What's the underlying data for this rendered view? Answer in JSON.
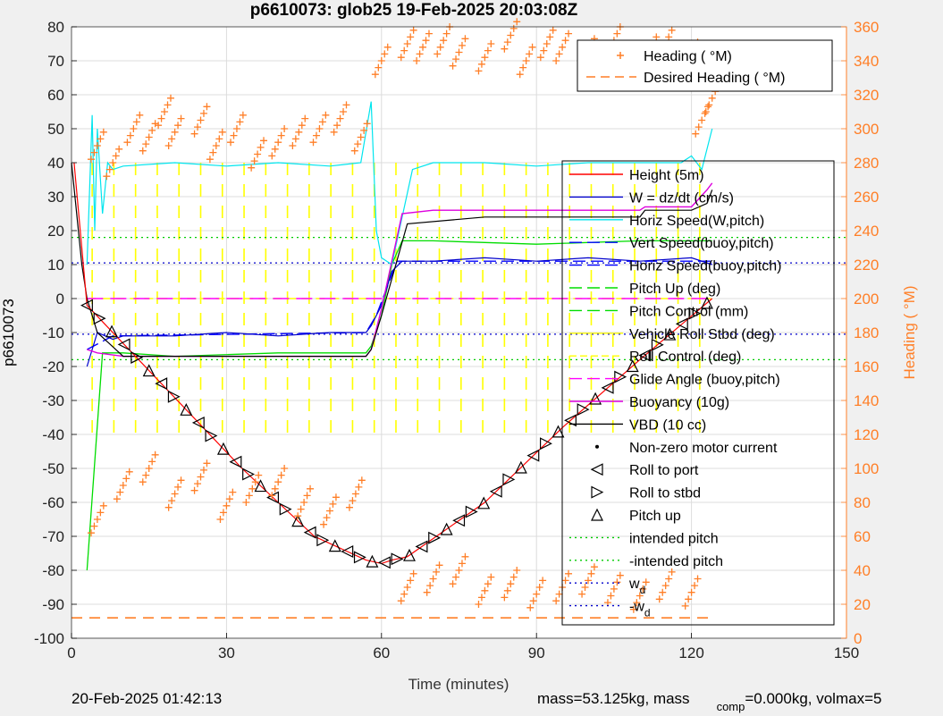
{
  "chart_data": {
    "type": "line",
    "title": "p6610073: glob25 19-Feb-2025 20:03:08Z",
    "xlabel": "Time (minutes)",
    "ylabel": "p6610073",
    "y2label": "Heading ( °M)",
    "xlim": [
      0,
      150
    ],
    "ylim": [
      -100,
      80
    ],
    "y2lim": [
      0,
      360
    ],
    "xticks": [
      "0",
      "30",
      "60",
      "90",
      "120",
      "150"
    ],
    "yticks": [
      "80",
      "70",
      "60",
      "50",
      "40",
      "30",
      "20",
      "10",
      "0",
      "-10",
      "-20",
      "-30",
      "-40",
      "-50",
      "-60",
      "-70",
      "-80",
      "-90",
      "-100"
    ],
    "y2ticks": [
      "360",
      "340",
      "320",
      "300",
      "280",
      "260",
      "240",
      "220",
      "200",
      "180",
      "160",
      "140",
      "120",
      "100",
      "80",
      "60",
      "40",
      "20",
      "0"
    ],
    "grid": true,
    "legend_heading": [
      "Heading ( °M)",
      "Desired Heading ( °M)"
    ],
    "legend_main": [
      "Height (5m)",
      "W = dz/dt (cm/s)",
      "Horiz Speed(W,pitch)",
      "Vert Speed(buoy,pitch)",
      "Horiz Speed(buoy,pitch)",
      "Pitch Up (deg)",
      "Pitch Control (mm)",
      "Vehicle Roll Stbd (deg)",
      "Roll Control (deg)",
      "Glide Angle (buoy,pitch)",
      "Buoyancy (10g)",
      "VBD (10 cc)",
      "Non-zero motor current",
      "Roll to port",
      "Roll to stbd",
      "Pitch up",
      "intended pitch",
      "-intended pitch",
      "w_d",
      "-w_d"
    ],
    "colors": {
      "height": "#ff0000",
      "w": "#0000cc",
      "horiz_speed": "#00e5ee",
      "vert_speed": "#0000ff",
      "pitch": "#00dd00",
      "roll": "#ffff00",
      "glide": "#ff00ff",
      "buoyancy": "#dd00dd",
      "vbd": "#000000",
      "heading": "#ff7f27",
      "axis2": "#ff7f27"
    },
    "series": {
      "height": {
        "x": [
          0.5,
          3,
          33,
          47,
          57,
          60,
          62,
          65,
          80,
          95,
          110,
          124
        ],
        "y": [
          40,
          -2,
          -50,
          -70,
          -77,
          -78,
          -77,
          -76,
          -60,
          -38,
          -18,
          0
        ]
      },
      "vbd": {
        "x": [
          0,
          2,
          3,
          5,
          10,
          30,
          57,
          58,
          60,
          65,
          80,
          100,
          110,
          111,
          120,
          123,
          124
        ],
        "y": [
          40,
          10,
          0,
          -10,
          -17,
          -17,
          -17,
          -15,
          -5,
          22,
          24,
          24,
          24,
          26,
          26,
          28,
          32
        ]
      },
      "buoyancy": {
        "x": [
          3,
          5,
          10,
          30,
          57,
          58,
          60,
          64,
          70,
          90,
          110,
          111,
          120,
          123,
          124
        ],
        "y": [
          -15,
          -16,
          -17,
          -17,
          -17,
          -15,
          -3,
          25,
          26,
          26,
          26,
          27,
          27,
          32,
          34
        ]
      },
      "horiz_speed": {
        "x": [
          3,
          4,
          4.5,
          5,
          6,
          7,
          8,
          10,
          20,
          30,
          40,
          50,
          56,
          58,
          59,
          60,
          62,
          66,
          70,
          80,
          90,
          100,
          110,
          118,
          120,
          122,
          124
        ],
        "y": [
          10,
          54,
          20,
          50,
          25,
          40,
          38,
          39,
          40,
          39,
          40,
          39,
          40,
          58,
          20,
          12,
          10,
          38,
          40,
          40,
          39,
          40,
          40,
          40,
          42,
          38,
          50
        ]
      },
      "w": {
        "x": [
          3,
          5,
          8,
          10,
          20,
          30,
          40,
          50,
          57,
          58,
          60,
          62,
          64,
          70,
          80,
          90,
          100,
          110,
          120,
          124
        ],
        "y": [
          -20,
          -10,
          -12,
          -11,
          -11,
          -10,
          -11,
          -10,
          -10,
          -8,
          -2,
          8,
          11,
          11,
          12,
          11,
          12,
          11,
          12,
          10
        ]
      },
      "vert_speed": {
        "x": [
          3,
          8,
          57,
          59,
          63,
          124
        ],
        "y": [
          -15,
          -11,
          -10,
          -5,
          11,
          11
        ]
      },
      "pitch": {
        "x": [
          3,
          6,
          10,
          20,
          40,
          57,
          58,
          60,
          62,
          64,
          70,
          90,
          110,
          124
        ],
        "y": [
          -80,
          -16,
          -16,
          -17,
          -16,
          -16,
          -14,
          -5,
          10,
          17,
          17,
          16,
          17,
          17
        ]
      },
      "heading_markers": {
        "x": [
          5,
          8,
          12,
          15,
          18,
          20,
          25,
          28,
          32,
          36,
          40,
          44,
          48,
          52,
          56,
          60,
          65,
          68,
          72,
          75,
          80,
          85,
          88,
          92,
          95,
          100,
          105,
          108,
          112,
          115,
          120,
          122,
          124,
          5,
          10,
          15,
          20,
          25,
          30,
          35,
          40,
          45,
          50,
          55,
          65,
          70,
          75,
          80,
          85,
          90,
          95,
          100,
          105,
          110,
          115,
          120
        ],
        "y": [
          290,
          280,
          300,
          295,
          310,
          298,
          305,
          290,
          300,
          285,
          292,
          298,
          300,
          306,
          295,
          340,
          350,
          348,
          352,
          345,
          342,
          355,
          340,
          350,
          348,
          345,
          352,
          340,
          346,
          350,
          343,
          305,
          318,
          70,
          90,
          100,
          85,
          95,
          78,
          88,
          92,
          80,
          75,
          85,
          30,
          35,
          40,
          28,
          32,
          26,
          30,
          34,
          29,
          25,
          31,
          27
        ]
      },
      "desired_heading_y": 12,
      "wd_y": 10.5,
      "intended_pitch_y": 18
    }
  },
  "footer": {
    "left": "20-Feb-2025 01:42:13",
    "mass": "mass=53.125kg, mass",
    "comp": "comp",
    "rest": "=0.000kg, volmax=5"
  }
}
